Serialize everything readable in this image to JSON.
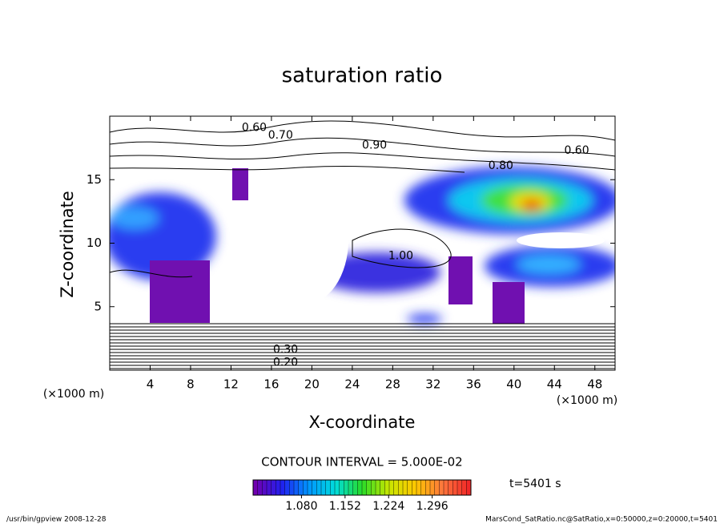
{
  "chart_data": {
    "type": "contour",
    "title": "saturation ratio",
    "xlabel": "X-coordinate",
    "ylabel": "Z-coordinate",
    "x_unit_label": "(×1000 m)",
    "xlim": [
      0,
      50
    ],
    "xticks": [
      4,
      8,
      12,
      16,
      20,
      24,
      28,
      32,
      36,
      40,
      44,
      48
    ],
    "ylim": [
      0,
      20
    ],
    "yticks": [
      5,
      10,
      15
    ],
    "contour_interval": "CONTOUR INTERVAL = 5.000E-02",
    "contour_labels": [
      {
        "text": "0.60",
        "x": 14.3,
        "z": 19.1
      },
      {
        "text": "0.70",
        "x": 16.9,
        "z": 18.5
      },
      {
        "text": "0.90",
        "x": 26.2,
        "z": 17.7
      },
      {
        "text": "0.80",
        "x": 38.7,
        "z": 16.1
      },
      {
        "text": "0.60",
        "x": 46.2,
        "z": 17.3
      },
      {
        "text": "1.00",
        "x": 28.8,
        "z": 9.0
      },
      {
        "text": "0.30",
        "x": 17.4,
        "z": 1.6
      },
      {
        "text": "0.20",
        "x": 17.4,
        "z": 0.6
      }
    ],
    "clim": [
      1.0,
      1.36
    ],
    "cticks": [
      {
        "value": 1.08,
        "label": "1.080"
      },
      {
        "value": 1.152,
        "label": "1.152"
      },
      {
        "value": 1.224,
        "label": "1.224"
      },
      {
        "value": 1.296,
        "label": "1.296"
      }
    ],
    "time_label": "t=5401 s",
    "footer_left": "/usr/bin/gpview  2008-12-28",
    "footer_right": "MarsCond_SatRatio.nc@SatRatio,x=0:50000,z=0:20000,t=5401"
  }
}
